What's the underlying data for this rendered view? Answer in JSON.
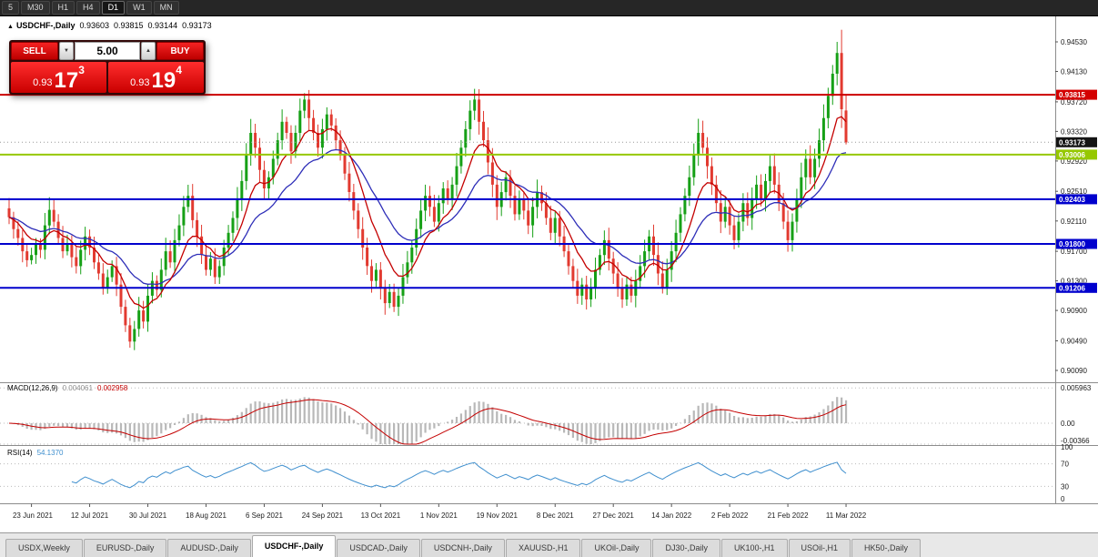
{
  "toolbar": {
    "timeframes": [
      "5",
      "M30",
      "H1",
      "H4",
      "D1",
      "W1",
      "MN"
    ],
    "active": "D1"
  },
  "chart_header": {
    "collapse_icon": "▲",
    "symbol": "USDCHF-,Daily",
    "open": "0.93603",
    "high": "0.93815",
    "low": "0.93144",
    "close": "0.93173"
  },
  "trade_panel": {
    "sell_label": "SELL",
    "buy_label": "BUY",
    "volume": "5.00",
    "icons": {
      "spinner_down": "▼",
      "spinner_up": "▲"
    },
    "bid": {
      "prefix": "0.93",
      "big": "17",
      "sup": "3"
    },
    "ask": {
      "prefix": "0.93",
      "big": "19",
      "sup": "4"
    }
  },
  "price_axis": {
    "ticks": [
      {
        "label": "0.94530",
        "value": 0.9453
      },
      {
        "label": "0.94130",
        "value": 0.9413
      },
      {
        "label": "0.93720",
        "value": 0.9372
      },
      {
        "label": "0.93320",
        "value": 0.9332
      },
      {
        "label": "0.92920",
        "value": 0.9292
      },
      {
        "label": "0.92510",
        "value": 0.9251
      },
      {
        "label": "0.92110",
        "value": 0.9211
      },
      {
        "label": "0.91700",
        "value": 0.917
      },
      {
        "label": "0.91300",
        "value": 0.913
      },
      {
        "label": "0.90900",
        "value": 0.909
      },
      {
        "label": "0.90490",
        "value": 0.9049
      },
      {
        "label": "0.90090",
        "value": 0.9009
      }
    ],
    "badges": [
      {
        "label": "0.93815",
        "value": 0.93815,
        "color": "#d40000"
      },
      {
        "label": "0.93173",
        "value": 0.93173,
        "color": "#141414"
      },
      {
        "label": "0.93006",
        "value": 0.93006,
        "color": "#96c800"
      },
      {
        "label": "0.92403",
        "value": 0.92403,
        "color": "#0000cd"
      },
      {
        "label": "0.91800",
        "value": 0.918,
        "color": "#0000cd"
      },
      {
        "label": "0.91206",
        "value": 0.91206,
        "color": "#0000cd"
      }
    ]
  },
  "macd": {
    "label": "MACD(12,26,9)",
    "value_main": "0.004061",
    "value_signal": "0.002958",
    "histogram_color": "#b8b8b8",
    "signal_color": "#c40000",
    "axis": [
      {
        "label": "0.005963",
        "value": 0.005963
      },
      {
        "label": "0.00",
        "value": 0
      },
      {
        "label": "-0.00366",
        "value": -0.00366
      }
    ]
  },
  "rsi": {
    "label": "RSI(14)",
    "value": "54.1370",
    "line_color": "#3f8fce",
    "levels": [
      70,
      30
    ],
    "axis": [
      {
        "label": "100",
        "value": 100
      },
      {
        "label": "70",
        "value": 70
      },
      {
        "label": "30",
        "value": 30
      },
      {
        "label": "0",
        "value": 0
      }
    ]
  },
  "dates": [
    "23 Jun 2021",
    "12 Jul 2021",
    "30 Jul 2021",
    "18 Aug 2021",
    "6 Sep 2021",
    "24 Sep 2021",
    "13 Oct 2021",
    "1 Nov 2021",
    "19 Nov 2021",
    "8 Dec 2021",
    "27 Dec 2021",
    "14 Jan 2022",
    "2 Feb 2022",
    "21 Feb 2022",
    "11 Mar 2022"
  ],
  "tabs": [
    {
      "label": "USDX,Weekly"
    },
    {
      "label": "EURUSD-,Daily"
    },
    {
      "label": "AUDUSD-,Daily"
    },
    {
      "label": "USDCHF-,Daily",
      "active": true
    },
    {
      "label": "USDCAD-,Daily"
    },
    {
      "label": "USDCNH-,Daily"
    },
    {
      "label": "XAUUSD-,H1"
    },
    {
      "label": "UKOil-,Daily"
    },
    {
      "label": "DJ30-,Daily"
    },
    {
      "label": "UK100-,H1"
    },
    {
      "label": "USOil-,H1"
    },
    {
      "label": "HK50-,Daily"
    }
  ],
  "chart_data": {
    "type": "candlestick",
    "symbol": "USDCHF-",
    "timeframe": "Daily",
    "up_color": "#16a016",
    "down_color": "#e23a30",
    "ma_fast_period": 9,
    "ma_fast_color": "#c40000",
    "ma_slow_period": 22,
    "ma_slow_color": "#2e2eb8",
    "date_tick_start": 5,
    "date_tick_step": 13,
    "hlines": [
      {
        "price": 0.93815,
        "color": "#cc0000"
      },
      {
        "price": 0.93006,
        "color": "#96c800"
      },
      {
        "price": 0.92403,
        "color": "#0000cd"
      },
      {
        "price": 0.918,
        "color": "#0000cd"
      },
      {
        "price": 0.91206,
        "color": "#0000cd"
      }
    ],
    "last_candle": {
      "open": 0.93603,
      "high": 0.93815,
      "low": 0.93144,
      "close": 0.93173
    },
    "spike_high": {
      "index": 185,
      "high": 0.9453
    },
    "closes": [
      0.9216,
      0.92,
      0.9188,
      0.917,
      0.9158,
      0.9165,
      0.918,
      0.9172,
      0.9205,
      0.9226,
      0.921,
      0.9188,
      0.917,
      0.918,
      0.9162,
      0.915,
      0.9172,
      0.919,
      0.9175,
      0.9155,
      0.914,
      0.912,
      0.9135,
      0.915,
      0.9125,
      0.9095,
      0.907,
      0.9048,
      0.9065,
      0.909,
      0.9075,
      0.911,
      0.913,
      0.9118,
      0.9145,
      0.917,
      0.9155,
      0.9185,
      0.9205,
      0.923,
      0.9245,
      0.9212,
      0.919,
      0.9165,
      0.9145,
      0.916,
      0.9135,
      0.915,
      0.9175,
      0.9195,
      0.9215,
      0.924,
      0.9265,
      0.93,
      0.933,
      0.931,
      0.928,
      0.9255,
      0.927,
      0.9295,
      0.932,
      0.9345,
      0.933,
      0.9305,
      0.933,
      0.936,
      0.9375,
      0.935,
      0.933,
      0.931,
      0.9335,
      0.9355,
      0.934,
      0.932,
      0.93,
      0.9275,
      0.925,
      0.9225,
      0.92,
      0.9175,
      0.915,
      0.913,
      0.9145,
      0.912,
      0.91,
      0.9115,
      0.9095,
      0.911,
      0.9135,
      0.9155,
      0.9175,
      0.92,
      0.9225,
      0.9245,
      0.923,
      0.921,
      0.9235,
      0.9255,
      0.924,
      0.926,
      0.9285,
      0.931,
      0.9335,
      0.936,
      0.9375,
      0.9345,
      0.932,
      0.929,
      0.926,
      0.923,
      0.925,
      0.927,
      0.9245,
      0.922,
      0.924,
      0.9225,
      0.9205,
      0.923,
      0.925,
      0.9235,
      0.9215,
      0.9195,
      0.9215,
      0.919,
      0.917,
      0.915,
      0.913,
      0.911,
      0.9125,
      0.9105,
      0.912,
      0.9145,
      0.9165,
      0.9185,
      0.916,
      0.914,
      0.912,
      0.9105,
      0.9125,
      0.911,
      0.913,
      0.915,
      0.917,
      0.919,
      0.9165,
      0.914,
      0.912,
      0.9145,
      0.917,
      0.9195,
      0.922,
      0.9245,
      0.927,
      0.93,
      0.933,
      0.931,
      0.9285,
      0.926,
      0.9235,
      0.921,
      0.923,
      0.9205,
      0.9185,
      0.921,
      0.9235,
      0.9215,
      0.924,
      0.926,
      0.924,
      0.9265,
      0.9285,
      0.926,
      0.9235,
      0.921,
      0.9185,
      0.921,
      0.924,
      0.927,
      0.9295,
      0.927,
      0.9295,
      0.932,
      0.935,
      0.938,
      0.941,
      0.9438,
      0.9362,
      0.93173
    ]
  }
}
